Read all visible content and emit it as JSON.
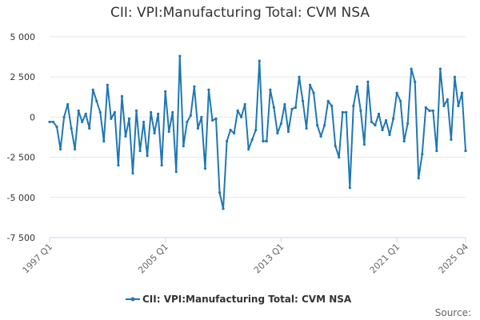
{
  "chart_data": {
    "type": "line",
    "title": "CII: VPI:Manufacturing Total: CVM NSA",
    "series": [
      {
        "name": "CII: VPI:Manufacturing Total: CVM NSA",
        "color": "#1f77b4",
        "values": [
          -300,
          -300,
          -600,
          -2000,
          0,
          800,
          -700,
          -2000,
          400,
          -300,
          200,
          -700,
          1700,
          1000,
          300,
          -1500,
          2000,
          -100,
          300,
          -3000,
          1300,
          -1200,
          -100,
          -3500,
          400,
          -2100,
          -300,
          -2400,
          300,
          -1000,
          200,
          -3000,
          1600,
          -900,
          300,
          -3400,
          3800,
          -1800,
          -300,
          100,
          1900,
          -700,
          0,
          -3200,
          1700,
          -200,
          -100,
          -4700,
          -5700,
          -1500,
          -800,
          -1000,
          400,
          0,
          800,
          -2000,
          -1400,
          -800,
          3500,
          -1500,
          -1500,
          1700,
          600,
          -1000,
          -400,
          800,
          -900,
          500,
          600,
          2500,
          1000,
          -700,
          2000,
          1500,
          -500,
          -1200,
          -500,
          1000,
          700,
          -1800,
          -2500,
          300,
          300,
          -4400,
          700,
          1900,
          400,
          -1700,
          2200,
          -300,
          -500,
          200,
          -800,
          -200,
          -1100,
          -100,
          1500,
          1000,
          -1500,
          -400,
          3000,
          2200,
          -3800,
          -2300,
          600,
          400,
          400,
          -2100,
          3000,
          700,
          1100,
          -1400,
          2500,
          700,
          1500,
          -2100
        ],
        "start": "1997 Q1",
        "frequency": "quarterly"
      }
    ],
    "xlabels": [
      "1997 Q1",
      "2005 Q1",
      "2013 Q1",
      "2021 Q1",
      "2025 Q4"
    ],
    "yticks": [
      "5 000",
      "2 500",
      "0",
      "-2 500",
      "-5 000",
      "-7 500"
    ],
    "ylim": [
      -7500,
      5000
    ],
    "grid": true,
    "legend": "bottom",
    "source_label": "Source:"
  }
}
